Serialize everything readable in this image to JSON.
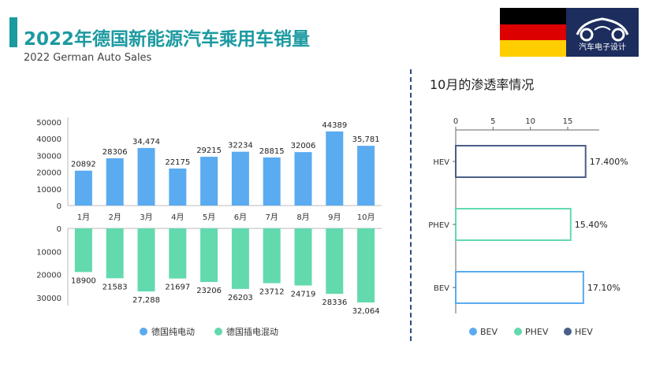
{
  "header": {
    "title": "2022年德国新能源汽车乘用车销量",
    "subtitle": "2022 German Auto Sales",
    "logo_text": "汽车电子设计"
  },
  "colors": {
    "accent": "#1b9aa0",
    "bev": "#5aabf0",
    "phev": "#63d9ae",
    "hev": "#4a5f86",
    "flag_black": "#000000",
    "flag_red": "#dd0000",
    "flag_gold": "#ffce00",
    "logo_bg": "#1c2d5e"
  },
  "right_panel": {
    "title": "10月的渗透率情况"
  },
  "chart_data": [
    {
      "type": "bar",
      "categories": [
        "1月",
        "2月",
        "3月",
        "4月",
        "5月",
        "6月",
        "7月",
        "8月",
        "9月",
        "10月"
      ],
      "series": [
        {
          "name": "德国纯电动",
          "values": [
            20892,
            28306,
            34474,
            22175,
            29215,
            32234,
            28815,
            32006,
            44389,
            35781
          ],
          "labels": [
            "20892",
            "28306",
            "34,474",
            "22175",
            "29215",
            "32234",
            "28815",
            "32006",
            "44389",
            "35,781"
          ]
        },
        {
          "name": "德国插电混动",
          "values": [
            18900,
            21583,
            27288,
            21697,
            23206,
            26203,
            23712,
            24719,
            28336,
            32064
          ],
          "labels": [
            "18900",
            "21583",
            "27,288",
            "21697",
            "23206",
            "26203",
            "23712",
            "24719",
            "28336",
            "32,064"
          ]
        }
      ],
      "upper_ticks": [
        "50000",
        "40000",
        "30000",
        "20000",
        "10000",
        "0"
      ],
      "lower_ticks": [
        "0",
        "10000",
        "20000",
        "30000"
      ],
      "upper_ylim": [
        0,
        50000
      ],
      "lower_ylim": [
        0,
        35000
      ],
      "legend": [
        "德国纯电动",
        "德国插电混动"
      ]
    },
    {
      "type": "bar",
      "orientation": "horizontal",
      "categories": [
        "HEV",
        "PHEV",
        "BEV"
      ],
      "values": [
        17.4,
        15.4,
        17.1
      ],
      "labels": [
        "17.400%",
        "15.40%",
        "17.10%"
      ],
      "xticks": [
        "0",
        "5",
        "10",
        "15"
      ],
      "xlim": [
        0,
        19
      ],
      "legend": [
        "BEV",
        "PHEV",
        "HEV"
      ]
    }
  ]
}
